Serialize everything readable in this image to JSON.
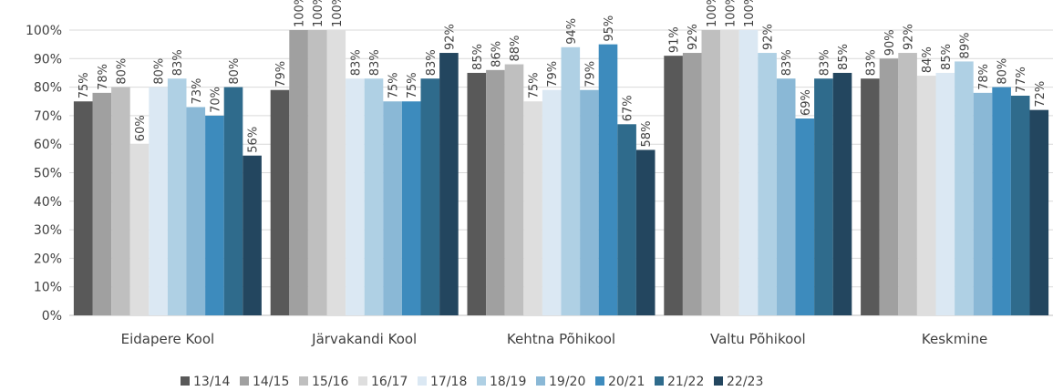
{
  "chart_data": {
    "type": "bar",
    "categories": [
      "Eidapere Kool",
      "Järvakandi Kool",
      "Kehtna Põhikool",
      "Valtu Põhikool",
      "Keskmine"
    ],
    "ylim": [
      0,
      100
    ],
    "yticks": [
      "0%",
      "10%",
      "20%",
      "30%",
      "40%",
      "50%",
      "60%",
      "70%",
      "80%",
      "90%",
      "100%"
    ],
    "grid": true,
    "legend_position": "bottom",
    "series": [
      {
        "name": "13/14",
        "color": "#595959",
        "values": [
          75,
          79,
          85,
          91,
          83
        ]
      },
      {
        "name": "14/15",
        "color": "#a0a0a0",
        "values": [
          78,
          100,
          86,
          92,
          90
        ]
      },
      {
        "name": "15/16",
        "color": "#bfbfbf",
        "values": [
          80,
          100,
          88,
          100,
          92
        ]
      },
      {
        "name": "16/17",
        "color": "#dedede",
        "values": [
          60,
          100,
          75,
          100,
          84
        ]
      },
      {
        "name": "17/18",
        "color": "#dbe8f3",
        "values": [
          80,
          83,
          79,
          100,
          85
        ]
      },
      {
        "name": "18/19",
        "color": "#afd0e4",
        "values": [
          83,
          83,
          94,
          92,
          89
        ]
      },
      {
        "name": "19/20",
        "color": "#8ab8d6",
        "values": [
          73,
          75,
          79,
          83,
          78
        ]
      },
      {
        "name": "20/21",
        "color": "#3d8bbd",
        "values": [
          70,
          75,
          95,
          69,
          80
        ]
      },
      {
        "name": "21/22",
        "color": "#2f6b8c",
        "values": [
          80,
          83,
          67,
          83,
          77
        ]
      },
      {
        "name": "22/23",
        "color": "#23465f",
        "values": [
          56,
          92,
          58,
          85,
          72
        ]
      }
    ],
    "data_labels": [
      [
        "75%",
        "78%",
        "80%",
        "60%",
        "80%",
        "83%",
        "73%",
        "70%",
        "80%",
        "56%"
      ],
      [
        "79%",
        "100%",
        "100%",
        "100%",
        "83%",
        "83%",
        "75%",
        "75%",
        "83%",
        "92%"
      ],
      [
        "85%",
        "86%",
        "88%",
        "75%",
        "79%",
        "94%",
        "79%",
        "95%",
        "67%",
        "58%"
      ],
      [
        "91%",
        "92%",
        "100%",
        "100%",
        "100%",
        "92%",
        "83%",
        "69%",
        "83%",
        "85%"
      ],
      [
        "83%",
        "90%",
        "92%",
        "84%",
        "85%",
        "89%",
        "78%",
        "80%",
        "77%",
        "72%"
      ]
    ]
  }
}
